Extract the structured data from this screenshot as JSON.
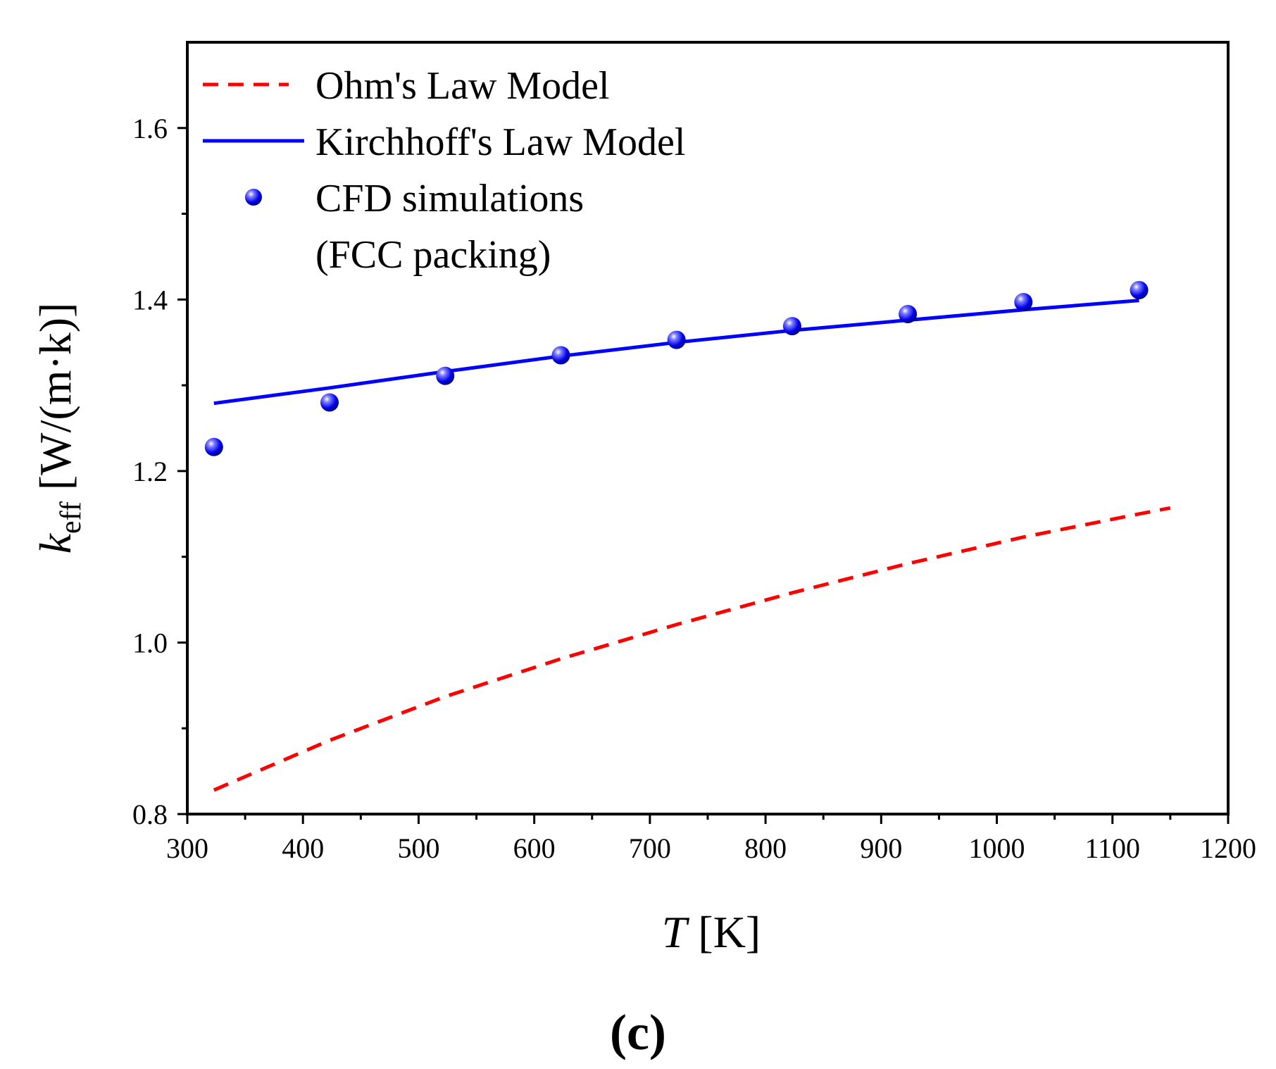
{
  "chart_data": {
    "type": "line",
    "title": "",
    "xlabel": {
      "symbol": "T",
      "unit": " [K]"
    },
    "ylabel": {
      "symbol": "k",
      "subscript": "eff",
      "unit": " [W/(m·k)]"
    },
    "xlim": [
      300,
      1200
    ],
    "ylim": [
      0.8,
      1.7
    ],
    "x_ticks": [
      300,
      400,
      500,
      600,
      700,
      800,
      900,
      1000,
      1100,
      1200
    ],
    "y_ticks": [
      0.8,
      1.0,
      1.2,
      1.4,
      1.6
    ],
    "x_tick_labels": [
      "300",
      "400",
      "500",
      "600",
      "700",
      "800",
      "900",
      "1000",
      "1100",
      "1200"
    ],
    "y_tick_labels": [
      "0.8",
      "1.0",
      "1.2",
      "1.4",
      "1.6"
    ],
    "legend_position": "top-left",
    "grid": false,
    "series": [
      {
        "name": "Ohm's Law Model",
        "style": "dashed-line",
        "color": "#ff0000",
        "x": [
          323,
          423,
          523,
          623,
          723,
          823,
          923,
          1023,
          1123,
          1150
        ],
        "y": [
          0.828,
          0.886,
          0.937,
          0.981,
          1.021,
          1.058,
          1.092,
          1.123,
          1.15,
          1.157
        ]
      },
      {
        "name": "Kirchhoff's Law Model",
        "style": "solid-line",
        "color": "#0000ff",
        "x": [
          323,
          423,
          523,
          623,
          723,
          823,
          923,
          1023,
          1123
        ],
        "y": [
          1.279,
          1.297,
          1.316,
          1.334,
          1.35,
          1.364,
          1.376,
          1.388,
          1.399
        ]
      },
      {
        "name": "CFD simulations",
        "name_line2": "(FCC packing)",
        "style": "markers",
        "color": "#0000ff",
        "x": [
          323,
          423,
          523,
          623,
          723,
          823,
          923,
          1023,
          1123
        ],
        "y": [
          1.228,
          1.28,
          1.311,
          1.335,
          1.353,
          1.369,
          1.383,
          1.397,
          1.411
        ]
      }
    ]
  },
  "panel_label": "(c)"
}
